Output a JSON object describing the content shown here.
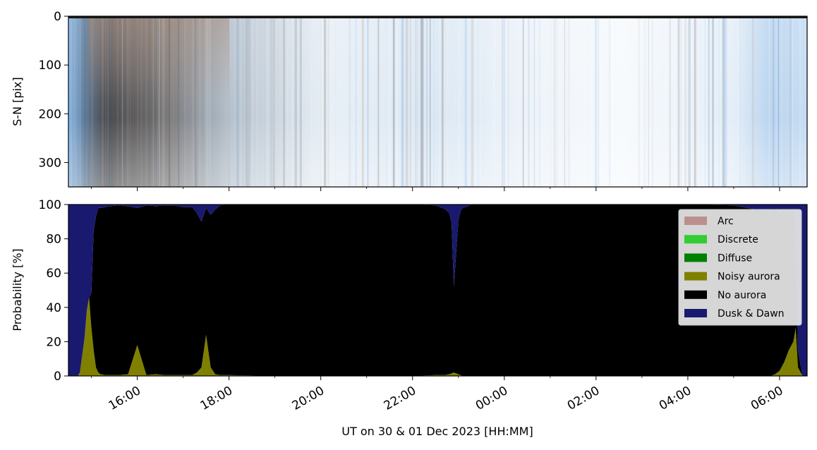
{
  "chart_data": [
    {
      "type": "heatmap",
      "name": "keogram",
      "ylabel": "S-N [pix]",
      "ylim": [
        350,
        0
      ],
      "yticks": [
        0,
        100,
        200,
        300
      ],
      "ytick_labels": [
        "0",
        "100",
        "200",
        "300"
      ],
      "x_range_hours": [
        14.5,
        30.6
      ],
      "colors": [
        "#f4f8fc",
        "#c9dcee",
        "#7fb3ea",
        "#3f5f7f",
        "#5a4438",
        "#b8a79c",
        "#dfe9f3",
        "#ffffff"
      ]
    },
    {
      "type": "area",
      "stacked": true,
      "ylabel": "Probability [%]",
      "xlabel": "UT on 30 & 01 Dec 2023 [HH:MM]",
      "ylim": [
        0,
        100
      ],
      "yticks": [
        0,
        20,
        40,
        60,
        80,
        100
      ],
      "ytick_labels": [
        "0",
        "20",
        "40",
        "60",
        "80",
        "100"
      ],
      "x_range_hours": [
        14.5,
        30.6
      ],
      "xticks_hours": [
        16,
        18,
        20,
        22,
        24,
        26,
        28,
        30
      ],
      "xtick_labels": [
        "16:00",
        "18:00",
        "20:00",
        "22:00",
        "00:00",
        "02:00",
        "04:00",
        "06:00"
      ],
      "legend_position": "top-right",
      "x": [
        14.5,
        14.6,
        14.7,
        14.75,
        14.8,
        14.85,
        14.9,
        14.95,
        15.0,
        15.05,
        15.1,
        15.15,
        15.2,
        15.3,
        15.4,
        15.6,
        15.8,
        16.0,
        16.2,
        16.4,
        16.6,
        16.8,
        17.0,
        17.2,
        17.3,
        17.4,
        17.5,
        17.6,
        17.7,
        17.8,
        18.0,
        19.0,
        20.0,
        21.0,
        22.0,
        22.5,
        22.7,
        22.8,
        22.85,
        22.9,
        22.95,
        23.0,
        23.05,
        23.1,
        23.2,
        23.3,
        23.5,
        23.7,
        23.8,
        24.0,
        25.0,
        26.0,
        27.0,
        28.0,
        29.0,
        29.5,
        29.8,
        29.9,
        30.0,
        30.1,
        30.2,
        30.3,
        30.35,
        30.4,
        30.5,
        30.6
      ],
      "series": [
        {
          "name": "Arc",
          "color": "#bc8f8f",
          "values": [
            0,
            0,
            0,
            0,
            0,
            0,
            0,
            0,
            0,
            0,
            0,
            0,
            0,
            0,
            0,
            0,
            0,
            0,
            0,
            0,
            0,
            0,
            0,
            0,
            0,
            0,
            0,
            0,
            0,
            0,
            0,
            0,
            0,
            0,
            0,
            0,
            0,
            0,
            0,
            0,
            0,
            0,
            0,
            0,
            0,
            0,
            0,
            0,
            0,
            0,
            0,
            0,
            0,
            0,
            0,
            0,
            0,
            0,
            0,
            0,
            0,
            0,
            0,
            0,
            0,
            0
          ]
        },
        {
          "name": "Discrete",
          "color": "#32cd32",
          "values": [
            0,
            0,
            0,
            0,
            0,
            0,
            0,
            0,
            0,
            0,
            0,
            0,
            0,
            0,
            0,
            0,
            0,
            0,
            0,
            0,
            0,
            0,
            0,
            0,
            0,
            0,
            0,
            0,
            0,
            0,
            0,
            0,
            0,
            0,
            0,
            0,
            0,
            0,
            0,
            0,
            0,
            0,
            0,
            0,
            0,
            0,
            0,
            0,
            0,
            0,
            0,
            0,
            0,
            0,
            0,
            0,
            0,
            0,
            0,
            0,
            0,
            0,
            0,
            0,
            0,
            0
          ]
        },
        {
          "name": "Diffuse",
          "color": "#008000",
          "values": [
            0,
            0,
            0,
            0,
            0,
            0,
            0,
            0,
            0,
            0,
            0,
            0,
            0,
            0,
            0,
            0,
            0,
            0,
            0,
            0,
            0,
            0,
            0,
            0,
            0,
            0,
            0,
            0,
            0,
            0,
            0,
            0,
            0,
            0,
            0,
            0,
            0,
            0,
            0,
            0,
            0,
            0,
            0,
            0,
            0,
            0,
            0,
            0,
            0,
            0,
            0,
            0,
            0,
            0,
            0,
            0,
            0,
            0,
            0,
            0,
            0,
            0,
            0,
            0,
            0,
            0
          ]
        },
        {
          "name": "Noisy aurora",
          "color": "#808000",
          "values": [
            0,
            0,
            0,
            2,
            12,
            22,
            38,
            46,
            28,
            15,
            5,
            2,
            1,
            0.5,
            0.5,
            0.5,
            1,
            18,
            0.5,
            1,
            0.5,
            0.5,
            0.5,
            0.5,
            2,
            5,
            24,
            5,
            1,
            0.5,
            0.5,
            0,
            0,
            0,
            0,
            0.5,
            0.5,
            1,
            1.5,
            2,
            1.5,
            1,
            0.5,
            0,
            0,
            0,
            0,
            0,
            0,
            0,
            0,
            0,
            0,
            0,
            0,
            0,
            0,
            1,
            3,
            8,
            15,
            20,
            28,
            5,
            0,
            0
          ]
        },
        {
          "name": "No aurora",
          "color": "#000000",
          "values": [
            0,
            0,
            0,
            0,
            0,
            0,
            0,
            0,
            20,
            70,
            88,
            96,
            97,
            98,
            98.5,
            99,
            98,
            80,
            99,
            98,
            99,
            99,
            98,
            98,
            93,
            85,
            74,
            89,
            96,
            99,
            99.5,
            100,
            100,
            100,
            100,
            99,
            97,
            94,
            88,
            50,
            70,
            90,
            96,
            98,
            99,
            100,
            100,
            100,
            100,
            100,
            100,
            100,
            100,
            100,
            99.5,
            97,
            96,
            97,
            92,
            90,
            80,
            78,
            60,
            10,
            0,
            0
          ]
        },
        {
          "name": "Dusk & Dawn",
          "color": "#191970",
          "values": [
            100,
            100,
            100,
            98,
            88,
            78,
            62,
            54,
            52,
            15,
            7,
            2,
            2,
            1.5,
            1,
            0.5,
            1,
            2,
            0.5,
            1,
            0.5,
            0.5,
            1.5,
            1.5,
            5,
            10,
            2,
            6,
            3,
            0.5,
            0,
            0,
            0,
            0,
            0,
            0.5,
            2.5,
            5,
            10.5,
            48,
            28.5,
            9,
            3.5,
            2,
            1,
            0,
            0,
            0,
            0,
            0,
            0,
            0,
            0,
            0,
            0.5,
            3,
            4,
            2,
            5,
            2,
            5,
            2,
            12,
            85,
            100,
            100
          ]
        }
      ]
    }
  ]
}
